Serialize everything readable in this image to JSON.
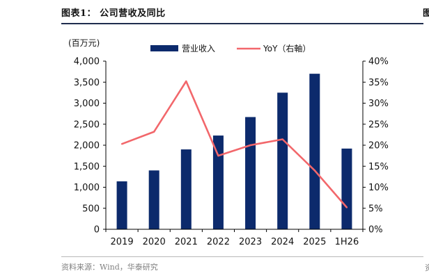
{
  "figure": {
    "title": "图表1：  公司营收及同比",
    "source": "资料来源：Wind，华泰研究",
    "clipped_right_title_char": "图",
    "clipped_right_source_char": "资"
  },
  "chart_data": {
    "type": "bar",
    "categories": [
      "2019",
      "2020",
      "2021",
      "2022",
      "2023",
      "2024",
      "2025",
      "1H26"
    ],
    "series": [
      {
        "name": "营业收入",
        "type": "bar",
        "axis": "left",
        "color": "#0c2a6c",
        "values": [
          1140,
          1400,
          1900,
          2230,
          2670,
          3250,
          3700,
          1920
        ]
      },
      {
        "name": "YoY（右軸）",
        "type": "line",
        "axis": "right",
        "color": "#f2676b",
        "values": [
          20.3,
          23.2,
          35.2,
          17.5,
          20.0,
          21.4,
          14.0,
          5.2
        ]
      }
    ],
    "y_left": {
      "unit_label": "(百万元)",
      "range": [
        0,
        4000
      ],
      "ticks": [
        0,
        500,
        1000,
        1500,
        2000,
        2500,
        3000,
        3500,
        4000
      ],
      "tick_labels": [
        "0",
        "500",
        "1,000",
        "1,500",
        "2,000",
        "2,500",
        "3,000",
        "3,500",
        "4,000"
      ]
    },
    "y_right": {
      "range": [
        0,
        40
      ],
      "ticks": [
        0,
        5,
        10,
        15,
        20,
        25,
        30,
        35,
        40
      ],
      "tick_labels": [
        "0%",
        "5%",
        "10%",
        "15%",
        "20%",
        "25%",
        "30%",
        "35%",
        "40%"
      ]
    },
    "grid": false,
    "legend_position": "top-center"
  }
}
